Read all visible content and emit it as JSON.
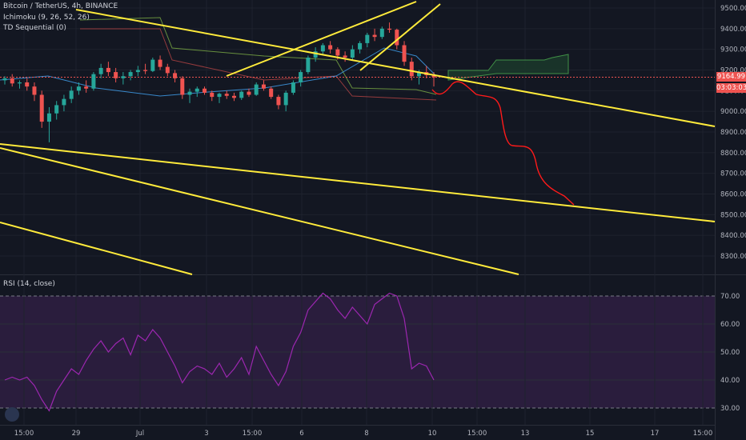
{
  "legend": {
    "symbol": "Bitcoin / TetherUS, 4h, BINANCE",
    "indicator1": "Ichimoku (9, 26, 52, 26)",
    "indicator2": "TD Sequential (0)"
  },
  "rsi_title": "RSI (14, close)",
  "price_tag": {
    "price": "9164.99",
    "countdown": "03:03:03",
    "color": "#ef5350"
  },
  "colors": {
    "background": "#131722",
    "trendline": "#ffeb3b",
    "projection": "#ff1a1a",
    "candle_up": "#26a69a",
    "candle_down": "#ef5350",
    "rsi_line": "#9c27b0",
    "rsi_band": "#2a1d3d"
  },
  "chart_data": [
    {
      "type": "candlestick",
      "title": "Bitcoin / TetherUS, 4h, BINANCE",
      "x_ticks": [
        "15:00",
        "29",
        "Jul",
        "3",
        "15:00",
        "6",
        "8",
        "10",
        "15:00",
        "13",
        "15",
        "17",
        "15:00"
      ],
      "y_ticks": [
        9500,
        9400,
        9300,
        9200,
        9100,
        9000,
        8900,
        8800,
        8700,
        8600,
        8500,
        8400,
        8300
      ],
      "ylim": [
        8200,
        9550
      ],
      "last_price": 9164.99,
      "candles": [
        [
          9150,
          9170,
          9130,
          9160
        ],
        [
          9160,
          9180,
          9120,
          9135
        ],
        [
          9135,
          9150,
          9110,
          9140
        ],
        [
          9140,
          9160,
          9100,
          9120
        ],
        [
          9120,
          9140,
          9050,
          9080
        ],
        [
          9080,
          9100,
          8920,
          8950
        ],
        [
          8950,
          9020,
          8850,
          8990
        ],
        [
          8990,
          9050,
          8960,
          9030
        ],
        [
          9030,
          9080,
          9000,
          9060
        ],
        [
          9060,
          9120,
          9040,
          9100
        ],
        [
          9100,
          9140,
          9080,
          9120
        ],
        [
          9120,
          9150,
          9090,
          9110
        ],
        [
          9110,
          9190,
          9100,
          9180
        ],
        [
          9180,
          9230,
          9160,
          9210
        ],
        [
          9210,
          9240,
          9170,
          9190
        ],
        [
          9190,
          9210,
          9140,
          9160
        ],
        [
          9160,
          9190,
          9130,
          9170
        ],
        [
          9170,
          9200,
          9150,
          9190
        ],
        [
          9190,
          9220,
          9170,
          9200
        ],
        [
          9200,
          9230,
          9180,
          9195
        ],
        [
          9195,
          9260,
          9190,
          9250
        ],
        [
          9250,
          9270,
          9200,
          9215
        ],
        [
          9215,
          9230,
          9170,
          9185
        ],
        [
          9185,
          9200,
          9140,
          9160
        ],
        [
          9160,
          9170,
          9060,
          9080
        ],
        [
          9080,
          9110,
          9040,
          9095
        ],
        [
          9095,
          9120,
          9070,
          9110
        ],
        [
          9110,
          9120,
          9080,
          9090
        ],
        [
          9090,
          9100,
          9050,
          9070
        ],
        [
          9070,
          9090,
          9040,
          9085
        ],
        [
          9085,
          9100,
          9060,
          9075
        ],
        [
          9075,
          9090,
          9050,
          9065
        ],
        [
          9065,
          9100,
          9055,
          9095
        ],
        [
          9095,
          9110,
          9070,
          9080
        ],
        [
          9080,
          9140,
          9075,
          9130
        ],
        [
          9130,
          9150,
          9100,
          9110
        ],
        [
          9110,
          9120,
          9060,
          9070
        ],
        [
          9070,
          9080,
          9010,
          9030
        ],
        [
          9030,
          9100,
          9000,
          9090
        ],
        [
          9090,
          9150,
          9080,
          9140
        ],
        [
          9140,
          9200,
          9120,
          9190
        ],
        [
          9190,
          9270,
          9180,
          9260
        ],
        [
          9260,
          9310,
          9240,
          9290
        ],
        [
          9290,
          9330,
          9270,
          9320
        ],
        [
          9320,
          9340,
          9280,
          9300
        ],
        [
          9300,
          9310,
          9250,
          9270
        ],
        [
          9270,
          9290,
          9240,
          9260
        ],
        [
          9260,
          9320,
          9250,
          9300
        ],
        [
          9300,
          9340,
          9280,
          9330
        ],
        [
          9330,
          9380,
          9310,
          9370
        ],
        [
          9370,
          9400,
          9340,
          9360
        ],
        [
          9360,
          9410,
          9350,
          9400
        ],
        [
          9400,
          9430,
          9380,
          9395
        ],
        [
          9395,
          9400,
          9300,
          9320
        ],
        [
          9320,
          9340,
          9220,
          9240
        ],
        [
          9240,
          9260,
          9150,
          9170
        ],
        [
          9170,
          9200,
          9130,
          9190
        ],
        [
          9190,
          9220,
          9160,
          9175
        ],
        [
          9175,
          9190,
          9120,
          9165
        ]
      ]
    },
    {
      "type": "line",
      "title": "RSI (14, close)",
      "x_ticks": [
        "15:00",
        "29",
        "Jul",
        "3",
        "15:00",
        "6",
        "8",
        "10",
        "15:00",
        "13",
        "15",
        "17",
        "15:00"
      ],
      "y_ticks": [
        70,
        60,
        50,
        40,
        30
      ],
      "ylim": [
        26,
        74
      ],
      "band": [
        30,
        70
      ],
      "values": [
        40,
        41,
        40,
        41,
        38,
        33,
        29,
        36,
        40,
        44,
        42,
        47,
        51,
        54,
        50,
        53,
        55,
        49,
        56,
        54,
        58,
        55,
        50,
        45,
        39,
        43,
        45,
        44,
        42,
        46,
        41,
        44,
        48,
        42,
        52,
        47,
        42,
        38,
        43,
        52,
        57,
        65,
        68,
        71,
        69,
        65,
        62,
        66,
        63,
        60,
        67,
        69,
        71,
        70,
        62,
        44,
        46,
        45,
        40
      ]
    }
  ]
}
